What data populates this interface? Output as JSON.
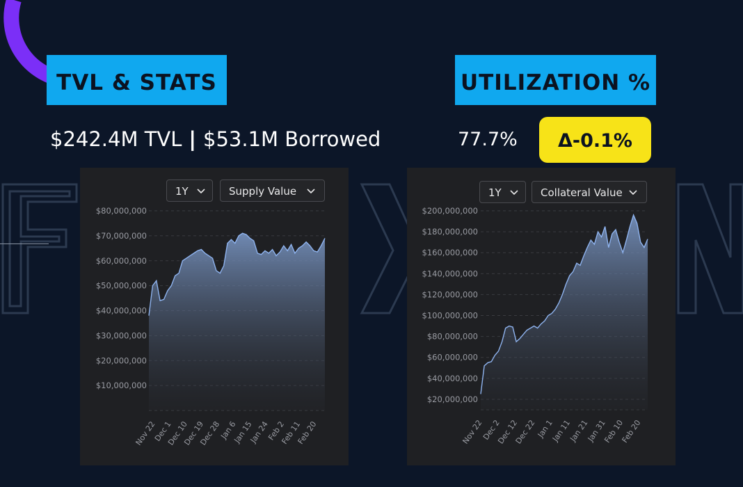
{
  "colors": {
    "background": "#0c1628",
    "heading_bg": "#10a8ef",
    "badge_bg": "#f7e318",
    "panel_bg": "#1f2023",
    "accent_arc": "#7b2ff7",
    "line": "#8fb4f0"
  },
  "headings": {
    "tvl": "TVL & STATS",
    "utilization": "UTILIZATION %"
  },
  "stats": {
    "tvl": "$242.4M TVL",
    "separator": "|",
    "borrowed": "$53.1M Borrowed",
    "utilization": "77.7%",
    "delta": "Δ-0.1%"
  },
  "controls": {
    "left": {
      "period": "1Y",
      "metric": "Supply Value"
    },
    "right": {
      "period": "1Y",
      "metric": "Collateral Value"
    }
  },
  "icons": {
    "chevron": "chevron-down-icon"
  },
  "chart_data": [
    {
      "type": "area",
      "ylim": [
        0,
        80000000
      ],
      "y_ticks": [
        "$10,000,000",
        "$20,000,000",
        "$30,000,000",
        "$40,000,000",
        "$50,000,000",
        "$60,000,000",
        "$70,000,000",
        "$80,000,000"
      ],
      "x_ticks": [
        "Nov 22",
        "Dec 1",
        "Dec 10",
        "Dec 19",
        "Dec 28",
        "Jan 6",
        "Jan 15",
        "Jan 24",
        "Feb 2",
        "Feb 11",
        "Feb 20"
      ],
      "x": [
        "Nov 22",
        "Nov 23",
        "Nov 25",
        "Nov 27",
        "Nov 29",
        "Dec 1",
        "Dec 3",
        "Dec 5",
        "Dec 7",
        "Dec 9",
        "Dec 11",
        "Dec 13",
        "Dec 15",
        "Dec 17",
        "Dec 19",
        "Dec 21",
        "Dec 23",
        "Dec 25",
        "Dec 27",
        "Dec 29",
        "Dec 31",
        "Jan 2",
        "Jan 4",
        "Jan 6",
        "Jan 8",
        "Jan 10",
        "Jan 12",
        "Jan 14",
        "Jan 16",
        "Jan 18",
        "Jan 20",
        "Jan 22",
        "Jan 24",
        "Jan 26",
        "Jan 28",
        "Jan 30",
        "Feb 1",
        "Feb 3",
        "Feb 5",
        "Feb 7",
        "Feb 9",
        "Feb 11",
        "Feb 13",
        "Feb 15",
        "Feb 17",
        "Feb 19",
        "Feb 21",
        "Feb 23"
      ],
      "values": [
        38000000,
        50000000,
        52000000,
        44000000,
        44500000,
        48000000,
        50000000,
        54000000,
        55000000,
        60000000,
        61000000,
        62000000,
        63000000,
        64000000,
        64500000,
        63000000,
        62000000,
        61000000,
        56000000,
        55000000,
        58000000,
        67000000,
        68500000,
        67000000,
        70000000,
        71000000,
        70500000,
        69000000,
        68000000,
        63000000,
        62500000,
        64000000,
        63000000,
        64500000,
        62000000,
        63500000,
        66000000,
        64000000,
        66500000,
        63000000,
        65000000,
        66000000,
        67500000,
        66000000,
        64000000,
        63500000,
        66000000,
        69000000
      ],
      "grid": true,
      "legend": "none"
    },
    {
      "type": "area",
      "ylim": [
        10000000,
        200000000
      ],
      "y_ticks": [
        "$20,000,000",
        "$40,000,000",
        "$60,000,000",
        "$80,000,000",
        "$100,000,000",
        "$120,000,000",
        "$140,000,000",
        "$160,000,000",
        "$180,000,000",
        "$200,000,000"
      ],
      "x_ticks": [
        "Nov 22",
        "Dec 2",
        "Dec 12",
        "Dec 22",
        "Jan 1",
        "Jan 11",
        "Jan 21",
        "Jan 31",
        "Feb 10",
        "Feb 20"
      ],
      "x": [
        "Nov 22",
        "Nov 23",
        "Nov 25",
        "Nov 27",
        "Nov 29",
        "Dec 1",
        "Dec 3",
        "Dec 5",
        "Dec 7",
        "Dec 9",
        "Dec 11",
        "Dec 13",
        "Dec 15",
        "Dec 17",
        "Dec 19",
        "Dec 21",
        "Dec 23",
        "Dec 25",
        "Dec 27",
        "Dec 29",
        "Dec 31",
        "Jan 2",
        "Jan 4",
        "Jan 6",
        "Jan 8",
        "Jan 10",
        "Jan 12",
        "Jan 14",
        "Jan 16",
        "Jan 18",
        "Jan 20",
        "Jan 22",
        "Jan 24",
        "Jan 26",
        "Jan 28",
        "Jan 30",
        "Feb 1",
        "Feb 3",
        "Feb 5",
        "Feb 7",
        "Feb 9",
        "Feb 11",
        "Feb 13",
        "Feb 15",
        "Feb 17",
        "Feb 19",
        "Feb 21",
        "Feb 23"
      ],
      "values": [
        25000000,
        52000000,
        55000000,
        56000000,
        62000000,
        66000000,
        75000000,
        88000000,
        90000000,
        89000000,
        75000000,
        78000000,
        82000000,
        86000000,
        88000000,
        90000000,
        88000000,
        92000000,
        95000000,
        100000000,
        102000000,
        106000000,
        112000000,
        120000000,
        130000000,
        138000000,
        142000000,
        150000000,
        148000000,
        157000000,
        165000000,
        172000000,
        168000000,
        180000000,
        175000000,
        185000000,
        165000000,
        178000000,
        182000000,
        170000000,
        160000000,
        172000000,
        185000000,
        196000000,
        188000000,
        170000000,
        165000000,
        173000000
      ],
      "grid": true,
      "legend": "none"
    }
  ]
}
